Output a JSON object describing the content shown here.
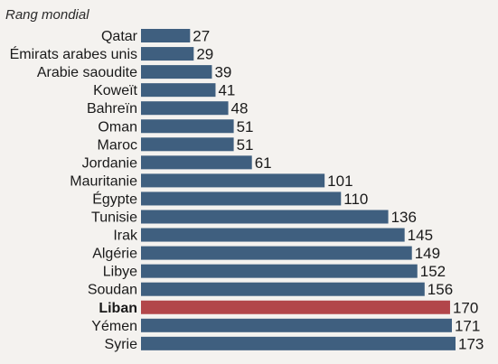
{
  "chart_data": {
    "type": "bar",
    "orientation": "horizontal",
    "title": "Rang mondial",
    "categories": [
      "Qatar",
      "Émirats arabes unis",
      "Arabie saoudite",
      "Koweït",
      "Bahreïn",
      "Oman",
      "Maroc",
      "Jordanie",
      "Mauritanie",
      "Égypte",
      "Tunisie",
      "Irak",
      "Algérie",
      "Libye",
      "Soudan",
      "Liban",
      "Yémen",
      "Syrie"
    ],
    "values": [
      27,
      29,
      39,
      41,
      48,
      51,
      51,
      61,
      101,
      110,
      136,
      145,
      149,
      152,
      156,
      170,
      171,
      173
    ],
    "highlight": "Liban",
    "colors": {
      "bar": "#3f5f7f",
      "highlight": "#b2464a",
      "background": "#f4f2ef"
    },
    "xlim": [
      0,
      173
    ],
    "grid": false,
    "legend": "none"
  }
}
